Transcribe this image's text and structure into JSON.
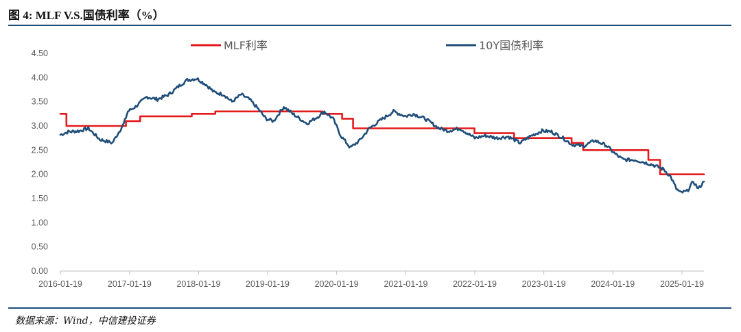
{
  "figure": {
    "title": "图 4: MLF V.S.国债利率（%）",
    "source": "数据来源：Wind，中信建投证券"
  },
  "colors": {
    "mlf": "#e31a1c",
    "bond": "#1f4e79",
    "axis": "#bfbfbf",
    "text": "#595959"
  },
  "chart_data": {
    "type": "line",
    "xlabel": "",
    "ylabel": "",
    "ylim": [
      0,
      4.5
    ],
    "yticks": [
      0,
      0.5,
      1.0,
      1.5,
      2.0,
      2.5,
      3.0,
      3.5,
      4.0,
      4.5
    ],
    "ytick_labels": [
      "0.00",
      "0.50",
      "1.00",
      "1.50",
      "2.00",
      "2.50",
      "3.00",
      "3.50",
      "4.00",
      "4.50"
    ],
    "xlim": [
      "2016-01-19",
      "2025-05-15"
    ],
    "xtick_labels": [
      "2016-01-19",
      "2017-01-19",
      "2018-01-19",
      "2019-01-19",
      "2020-01-19",
      "2021-01-19",
      "2022-01-19",
      "2023-01-19",
      "2024-01-19",
      "2025-01-19"
    ],
    "grid": false,
    "legend_position": "top",
    "series": [
      {
        "name": "MLF利率",
        "style": "step",
        "points": [
          [
            "2016-01-19",
            3.25
          ],
          [
            "2016-02-20",
            3.0
          ],
          [
            "2016-12-31",
            3.1
          ],
          [
            "2017-03-16",
            3.2
          ],
          [
            "2017-12-14",
            3.25
          ],
          [
            "2018-04-17",
            3.3
          ],
          [
            "2019-11-05",
            3.25
          ],
          [
            "2020-02-17",
            3.15
          ],
          [
            "2020-04-15",
            2.95
          ],
          [
            "2022-01-17",
            2.85
          ],
          [
            "2022-08-15",
            2.75
          ],
          [
            "2023-06-15",
            2.65
          ],
          [
            "2023-08-15",
            2.5
          ],
          [
            "2024-07-25",
            2.3
          ],
          [
            "2024-09-25",
            2.0
          ],
          [
            "2025-05-15",
            2.0
          ]
        ]
      },
      {
        "name": "10Y国债利率",
        "style": "line",
        "points": [
          [
            "2016-01-19",
            2.82
          ],
          [
            "2016-03-01",
            2.88
          ],
          [
            "2016-05-01",
            2.9
          ],
          [
            "2016-06-15",
            2.95
          ],
          [
            "2016-08-15",
            2.72
          ],
          [
            "2016-10-20",
            2.65
          ],
          [
            "2016-12-20",
            3.05
          ],
          [
            "2017-01-10",
            3.3
          ],
          [
            "2017-02-20",
            3.4
          ],
          [
            "2017-04-20",
            3.6
          ],
          [
            "2017-06-15",
            3.55
          ],
          [
            "2017-08-15",
            3.65
          ],
          [
            "2017-10-15",
            3.85
          ],
          [
            "2017-11-20",
            3.95
          ],
          [
            "2018-01-10",
            3.98
          ],
          [
            "2018-03-01",
            3.85
          ],
          [
            "2018-04-10",
            3.7
          ],
          [
            "2018-06-01",
            3.65
          ],
          [
            "2018-07-15",
            3.5
          ],
          [
            "2018-09-01",
            3.65
          ],
          [
            "2018-10-15",
            3.55
          ],
          [
            "2018-12-01",
            3.35
          ],
          [
            "2019-01-10",
            3.15
          ],
          [
            "2019-02-20",
            3.1
          ],
          [
            "2019-04-15",
            3.4
          ],
          [
            "2019-06-01",
            3.25
          ],
          [
            "2019-08-15",
            3.05
          ],
          [
            "2019-10-15",
            3.2
          ],
          [
            "2019-11-15",
            3.3
          ],
          [
            "2019-12-31",
            3.15
          ],
          [
            "2020-02-10",
            2.8
          ],
          [
            "2020-04-01",
            2.55
          ],
          [
            "2020-05-20",
            2.7
          ],
          [
            "2020-07-10",
            2.95
          ],
          [
            "2020-09-01",
            3.1
          ],
          [
            "2020-11-15",
            3.3
          ],
          [
            "2021-01-19",
            3.2
          ],
          [
            "2021-03-01",
            3.25
          ],
          [
            "2021-05-01",
            3.15
          ],
          [
            "2021-07-15",
            2.95
          ],
          [
            "2021-09-01",
            2.9
          ],
          [
            "2021-11-01",
            2.95
          ],
          [
            "2022-01-19",
            2.75
          ],
          [
            "2022-03-15",
            2.8
          ],
          [
            "2022-05-15",
            2.75
          ],
          [
            "2022-07-15",
            2.78
          ],
          [
            "2022-09-15",
            2.65
          ],
          [
            "2022-11-15",
            2.8
          ],
          [
            "2023-01-10",
            2.9
          ],
          [
            "2023-03-01",
            2.88
          ],
          [
            "2023-05-01",
            2.75
          ],
          [
            "2023-06-15",
            2.62
          ],
          [
            "2023-08-15",
            2.58
          ],
          [
            "2023-10-15",
            2.7
          ],
          [
            "2023-12-15",
            2.6
          ],
          [
            "2024-02-01",
            2.42
          ],
          [
            "2024-03-15",
            2.3
          ],
          [
            "2024-05-15",
            2.3
          ],
          [
            "2024-07-01",
            2.25
          ],
          [
            "2024-08-15",
            2.2
          ],
          [
            "2024-10-15",
            2.1
          ],
          [
            "2024-11-20",
            1.95
          ],
          [
            "2024-12-20",
            1.7
          ],
          [
            "2025-01-10",
            1.62
          ],
          [
            "2025-02-15",
            1.65
          ],
          [
            "2025-03-20",
            1.85
          ],
          [
            "2025-04-15",
            1.7
          ],
          [
            "2025-05-15",
            1.85
          ]
        ]
      }
    ]
  }
}
